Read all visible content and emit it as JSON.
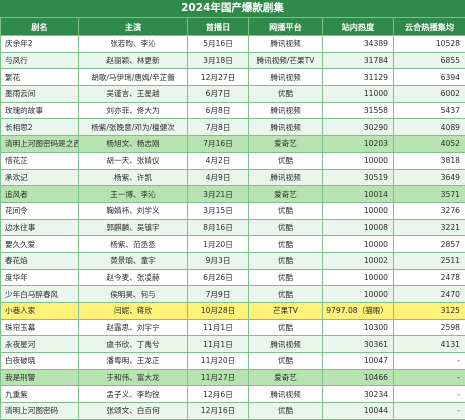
{
  "title": "2024年国产爆款剧集",
  "columns": [
    "剧名",
    "主演",
    "首播日",
    "网播平台",
    "站内热度",
    "云合热播集均"
  ],
  "rows": [
    {
      "name": "庆余年2",
      "cast": "张若昀、李沁",
      "date": "5月16日",
      "platform": "腾讯视频",
      "heat": "34389",
      "ep": "10528",
      "style": "plain"
    },
    {
      "name": "与凤行",
      "cast": "赵丽颖、林更新",
      "date": "3月18日",
      "platform": "腾讯视频/芒果TV",
      "heat": "31784",
      "ep": "6855",
      "style": "alt"
    },
    {
      "name": "繁花",
      "cast": "胡歌/马伊琍/唐嫣/辛芷蕾",
      "date": "12月27日",
      "platform": "腾讯视频",
      "heat": "31129",
      "ep": "6394",
      "style": "plain"
    },
    {
      "name": "墨雨云间",
      "cast": "吴谨言、王星越",
      "date": "6月7日",
      "platform": "优酷",
      "heat": "11000",
      "ep": "6002",
      "style": "alt"
    },
    {
      "name": "玫瑰的故事",
      "cast": "刘亦菲、佟大为",
      "date": "6月8日",
      "platform": "腾讯视频",
      "heat": "31558",
      "ep": "5437",
      "style": "plain"
    },
    {
      "name": "长相思2",
      "cast": "杨紫/张晚意/邓为/檀健次",
      "date": "7月8日",
      "platform": "腾讯视频",
      "heat": "30290",
      "ep": "4089",
      "style": "alt"
    },
    {
      "name": "清明上河图密码是之西行",
      "cast": "杨旭文、杨志刚",
      "date": "7月16日",
      "platform": "爱奇艺",
      "heat": "10203",
      "ep": "4052",
      "style": "green"
    },
    {
      "name": "惜花芷",
      "cast": "胡一天、张婧仪",
      "date": "4月2日",
      "platform": "优酷",
      "heat": "10000",
      "ep": "3818",
      "style": "plain"
    },
    {
      "name": "承欢记",
      "cast": "杨紫、许凯",
      "date": "4月9日",
      "platform": "腾讯视频",
      "heat": "30519",
      "ep": "3649",
      "style": "alt"
    },
    {
      "name": "追风者",
      "cast": "王一博、李沁",
      "date": "3月21日",
      "platform": "爱奇艺",
      "heat": "10014",
      "ep": "3571",
      "style": "green"
    },
    {
      "name": "花间令",
      "cast": "鞠婧祎、刘学义",
      "date": "3月15日",
      "platform": "优酷",
      "heat": "10000",
      "ep": "3276",
      "style": "plain"
    },
    {
      "name": "边水往事",
      "cast": "郭麒麟、吴镇宇",
      "date": "8月16日",
      "platform": "优酷",
      "heat": "10008",
      "ep": "3221",
      "style": "alt"
    },
    {
      "name": "要久久爱",
      "cast": "杨紫、范丞丞",
      "date": "1月20日",
      "platform": "优酷",
      "heat": "10000",
      "ep": "2857",
      "style": "plain"
    },
    {
      "name": "春花焰",
      "cast": "黄景瑜、童宇",
      "date": "9月3日",
      "platform": "优酷",
      "heat": "10002",
      "ep": "2511",
      "style": "alt"
    },
    {
      "name": "度华年",
      "cast": "赵今麦、张凌赫",
      "date": "6月26日",
      "platform": "优酷",
      "heat": "10000",
      "ep": "2478",
      "style": "plain"
    },
    {
      "name": "少年白马醉春风",
      "cast": "侯明昊、何与",
      "date": "7月9日",
      "platform": "优酷",
      "heat": "10000",
      "ep": "2470",
      "style": "alt"
    },
    {
      "name": "小巷人家",
      "cast": "闫妮、蒋欣",
      "date": "10月28日",
      "platform": "芒果TV",
      "heat": "9797.08（猫眼）",
      "ep": "3125",
      "style": "yellow"
    },
    {
      "name": "珠帘玉幕",
      "cast": "赵露思、刘宇宁",
      "date": "11月1日",
      "platform": "优酷",
      "heat": "10300",
      "ep": "2598",
      "style": "plain"
    },
    {
      "name": "永夜星河",
      "cast": "虞书欣、丁禹兮",
      "date": "11月1日",
      "platform": "腾讯视频",
      "heat": "30361",
      "ep": "4131",
      "style": "alt"
    },
    {
      "name": "白夜破晓",
      "cast": "潘粤明、王龙正",
      "date": "11月20日",
      "platform": "优酷",
      "heat": "10047",
      "ep": "-",
      "style": "plain"
    },
    {
      "name": "我是刑警",
      "cast": "于和伟、富大龙",
      "date": "11月27日",
      "platform": "爱奇艺",
      "heat": "10466",
      "ep": "-",
      "style": "green"
    },
    {
      "name": "九重紫",
      "cast": "孟子义、李昀锐",
      "date": "12月6日",
      "platform": "腾讯视频",
      "heat": "30234",
      "ep": "-",
      "style": "plain"
    },
    {
      "name": "清明上河图密码",
      "cast": "张颂文、白百何",
      "date": "12月16日",
      "platform": "优酷",
      "heat": "10044",
      "ep": "-",
      "style": "alt"
    }
  ]
}
